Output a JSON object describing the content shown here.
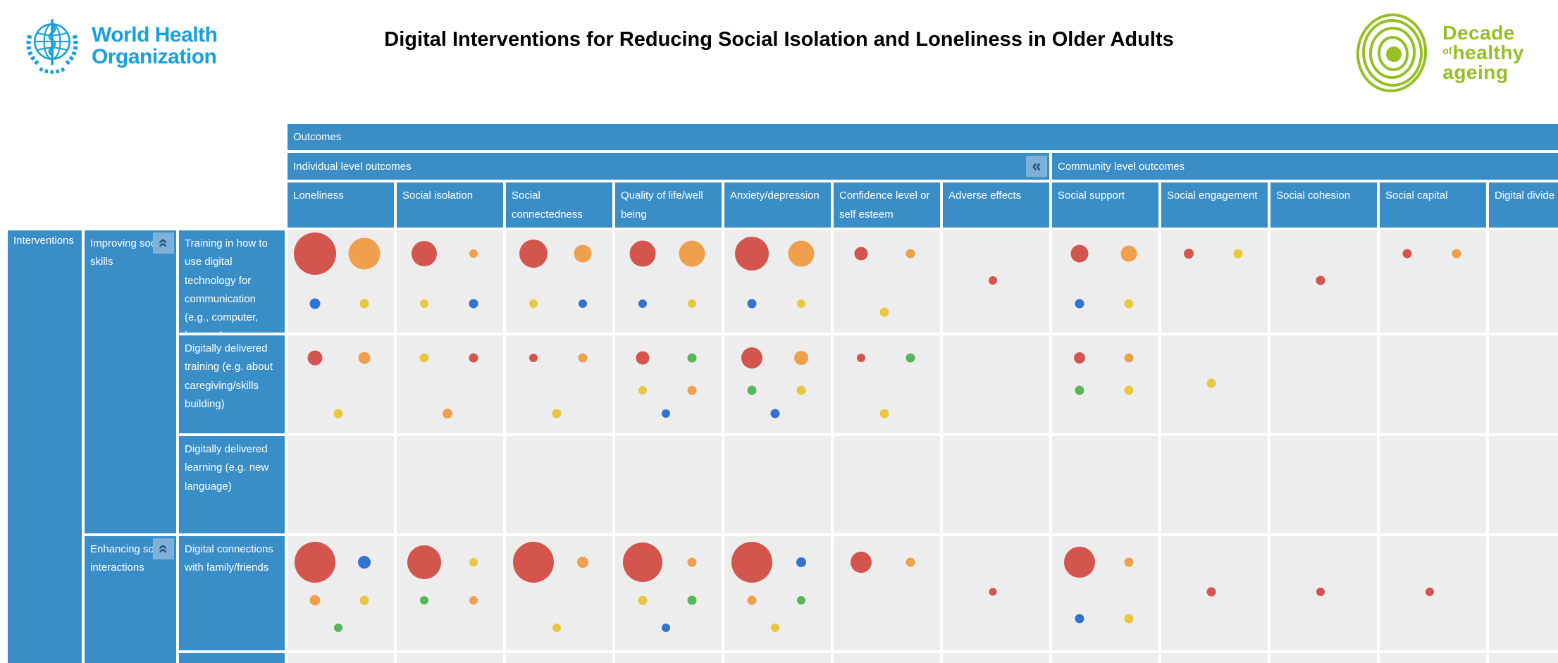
{
  "header": {
    "who_logo": {
      "line1": "World Health",
      "line2": "Organization"
    },
    "title": "Digital Interventions for Reducing Social Isolation and Loneliness in Older Adults",
    "decade_logo": {
      "line1": "Decade",
      "of_small": "of",
      "line2": "healthy",
      "line3": "ageing"
    }
  },
  "icons": {
    "collapse_header": "«",
    "collapse_group": "«"
  },
  "colors": {
    "ui": {
      "header_blue": "#3a8ec8",
      "light_blue": "#7db1d8",
      "chevron_navy": "#1f5480",
      "cell_gray": "#ededed",
      "who_blue": "#19a0db",
      "decade_green": "#95bf23",
      "title_black": "#000000",
      "page_bg": "#ffffff",
      "band_text": "#ffffff"
    },
    "palette": {
      "red": "#d4544e",
      "orange": "#f0a04c",
      "yellow": "#e9c73e",
      "blue": "#2e74d0",
      "green": "#57b65b"
    }
  },
  "chart_data": {
    "type": "heatmap",
    "variant": "bubble evidence gap map (rows = interventions, columns = outcomes, bubbles sized by evidence volume)",
    "title": "Digital Interventions for Reducing Social Isolation and Loneliness in Older Adults",
    "outcomes_label": "Outcomes",
    "interventions_label": "Interventions",
    "column_groups": [
      {
        "id": "individual",
        "label": "Individual level outcomes"
      },
      {
        "id": "community",
        "label": "Community level outcomes"
      }
    ],
    "columns": [
      {
        "id": "loneliness",
        "label": "Loneliness",
        "group": "individual"
      },
      {
        "id": "social_isolation",
        "label": "Social isolation",
        "group": "individual"
      },
      {
        "id": "social_connectedness",
        "label": "Social connectedness",
        "group": "individual"
      },
      {
        "id": "quality_of_life",
        "label": "Quality of life/well being",
        "group": "individual"
      },
      {
        "id": "anxiety_depression",
        "label": "Anxiety/depression",
        "group": "individual"
      },
      {
        "id": "confidence",
        "label": "Confidence level or self esteem",
        "group": "individual"
      },
      {
        "id": "adverse_effects",
        "label": "Adverse effects",
        "group": "individual"
      },
      {
        "id": "social_support",
        "label": "Social support",
        "group": "community"
      },
      {
        "id": "social_engagement",
        "label": "Social engagement",
        "group": "community"
      },
      {
        "id": "social_cohesion",
        "label": "Social cohesion",
        "group": "community"
      },
      {
        "id": "social_capital",
        "label": "Social capital",
        "group": "community"
      },
      {
        "id": "digital_divide",
        "label": "Digital divide",
        "group": "community"
      }
    ],
    "row_groups": [
      {
        "id": "improving_social_skills",
        "label": "Improving social skills",
        "rows": [
          {
            "id": "r1",
            "label": "Training in how to use digital technology for communication (e.g., computer, internet)"
          },
          {
            "id": "r2",
            "label": "Digitally delivered training (e.g. about caregiving/skills building)"
          },
          {
            "id": "r3",
            "label": "Digitally delivered learning (e.g. new language)"
          }
        ]
      },
      {
        "id": "enhancing_social_interactions",
        "label": "Enhancing social interactions",
        "rows": [
          {
            "id": "r4",
            "label": "Digital connections with family/friends"
          },
          {
            "id": "r5",
            "label": ""
          }
        ]
      }
    ],
    "cells": {
      "r1": {
        "loneliness": [
          {
            "color": "red",
            "d": 60,
            "pos": "tl"
          },
          {
            "color": "orange",
            "d": 45,
            "pos": "tr"
          },
          {
            "color": "blue",
            "d": 15,
            "pos": "bl"
          },
          {
            "color": "yellow",
            "d": 13,
            "pos": "br"
          }
        ],
        "social_isolation": [
          {
            "color": "red",
            "d": 36,
            "pos": "tl"
          },
          {
            "color": "orange",
            "d": 12,
            "pos": "tr"
          },
          {
            "color": "yellow",
            "d": 12,
            "pos": "bl"
          },
          {
            "color": "blue",
            "d": 13,
            "pos": "br"
          }
        ],
        "social_connectedness": [
          {
            "color": "red",
            "d": 40,
            "pos": "tl"
          },
          {
            "color": "orange",
            "d": 25,
            "pos": "tr"
          },
          {
            "color": "yellow",
            "d": 12,
            "pos": "bl"
          },
          {
            "color": "blue",
            "d": 12,
            "pos": "br"
          }
        ],
        "quality_of_life": [
          {
            "color": "red",
            "d": 37,
            "pos": "tl"
          },
          {
            "color": "orange",
            "d": 37,
            "pos": "tr"
          },
          {
            "color": "blue",
            "d": 12,
            "pos": "bl"
          },
          {
            "color": "yellow",
            "d": 12,
            "pos": "br"
          }
        ],
        "anxiety_depression": [
          {
            "color": "red",
            "d": 48,
            "pos": "tl"
          },
          {
            "color": "orange",
            "d": 37,
            "pos": "tr"
          },
          {
            "color": "blue",
            "d": 13,
            "pos": "bl"
          },
          {
            "color": "yellow",
            "d": 12,
            "pos": "br"
          }
        ],
        "confidence": [
          {
            "color": "red",
            "d": 19,
            "pos": "tl"
          },
          {
            "color": "orange",
            "d": 13,
            "pos": "tr"
          },
          {
            "color": "yellow",
            "d": 13,
            "pos": "bc"
          }
        ],
        "adverse_effects": [
          {
            "color": "red",
            "d": 12,
            "pos": "c"
          }
        ],
        "social_support": [
          {
            "color": "red",
            "d": 25,
            "pos": "tl"
          },
          {
            "color": "orange",
            "d": 23,
            "pos": "tr"
          },
          {
            "color": "blue",
            "d": 13,
            "pos": "bl"
          },
          {
            "color": "yellow",
            "d": 13,
            "pos": "br"
          }
        ],
        "social_engagement": [
          {
            "color": "red",
            "d": 14,
            "pos": "tl"
          },
          {
            "color": "yellow",
            "d": 13,
            "pos": "tr"
          }
        ],
        "social_cohesion": [
          {
            "color": "red",
            "d": 13,
            "pos": "c"
          }
        ],
        "social_capital": [
          {
            "color": "red",
            "d": 13,
            "pos": "tl"
          },
          {
            "color": "orange",
            "d": 13,
            "pos": "tr"
          }
        ],
        "digital_divide": []
      },
      "r2": {
        "loneliness": [
          {
            "color": "red",
            "d": 21,
            "pos": "tl"
          },
          {
            "color": "orange",
            "d": 17,
            "pos": "tr"
          },
          {
            "color": "yellow",
            "d": 13,
            "pos": "bc"
          }
        ],
        "social_isolation": [
          {
            "color": "yellow",
            "d": 13,
            "pos": "tl"
          },
          {
            "color": "red",
            "d": 13,
            "pos": "tr"
          },
          {
            "color": "orange",
            "d": 14,
            "pos": "bc"
          }
        ],
        "social_connectedness": [
          {
            "color": "red",
            "d": 12,
            "pos": "tl"
          },
          {
            "color": "orange",
            "d": 13,
            "pos": "tr"
          },
          {
            "color": "yellow",
            "d": 13,
            "pos": "bc"
          }
        ],
        "quality_of_life": [
          {
            "color": "red",
            "d": 19,
            "pos": "tl"
          },
          {
            "color": "green",
            "d": 13,
            "pos": "tr"
          },
          {
            "color": "yellow",
            "d": 12,
            "pos": "ml"
          },
          {
            "color": "orange",
            "d": 13,
            "pos": "mr"
          },
          {
            "color": "blue",
            "d": 12,
            "pos": "bc"
          }
        ],
        "anxiety_depression": [
          {
            "color": "red",
            "d": 30,
            "pos": "tl"
          },
          {
            "color": "orange",
            "d": 20,
            "pos": "tr"
          },
          {
            "color": "green",
            "d": 13,
            "pos": "ml"
          },
          {
            "color": "yellow",
            "d": 13,
            "pos": "mr"
          },
          {
            "color": "blue",
            "d": 13,
            "pos": "bc"
          }
        ],
        "confidence": [
          {
            "color": "red",
            "d": 12,
            "pos": "tl"
          },
          {
            "color": "green",
            "d": 13,
            "pos": "tr"
          },
          {
            "color": "yellow",
            "d": 13,
            "pos": "bc"
          }
        ],
        "adverse_effects": [],
        "social_support": [
          {
            "color": "red",
            "d": 16,
            "pos": "tl"
          },
          {
            "color": "orange",
            "d": 13,
            "pos": "tr"
          },
          {
            "color": "green",
            "d": 13,
            "pos": "ml"
          },
          {
            "color": "yellow",
            "d": 13,
            "pos": "mr"
          }
        ],
        "social_engagement": [
          {
            "color": "yellow",
            "d": 13,
            "pos": "c"
          }
        ],
        "social_cohesion": [],
        "social_capital": [],
        "digital_divide": []
      },
      "r3": {},
      "r4": {
        "loneliness": [
          {
            "color": "red",
            "d": 58,
            "pos": "tl"
          },
          {
            "color": "blue",
            "d": 18,
            "pos": "tr"
          },
          {
            "color": "orange",
            "d": 15,
            "pos": "ml"
          },
          {
            "color": "yellow",
            "d": 13,
            "pos": "mr"
          },
          {
            "color": "green",
            "d": 12,
            "pos": "bc"
          }
        ],
        "social_isolation": [
          {
            "color": "red",
            "d": 48,
            "pos": "tl"
          },
          {
            "color": "yellow",
            "d": 12,
            "pos": "tr"
          },
          {
            "color": "green",
            "d": 12,
            "pos": "ml"
          },
          {
            "color": "orange",
            "d": 12,
            "pos": "mr"
          }
        ],
        "social_connectedness": [
          {
            "color": "red",
            "d": 58,
            "pos": "tl"
          },
          {
            "color": "orange",
            "d": 16,
            "pos": "tr"
          },
          {
            "color": "yellow",
            "d": 12,
            "pos": "bc"
          }
        ],
        "quality_of_life": [
          {
            "color": "red",
            "d": 56,
            "pos": "tl"
          },
          {
            "color": "orange",
            "d": 13,
            "pos": "tr"
          },
          {
            "color": "yellow",
            "d": 13,
            "pos": "ml"
          },
          {
            "color": "green",
            "d": 13,
            "pos": "mr"
          },
          {
            "color": "blue",
            "d": 12,
            "pos": "bc"
          }
        ],
        "anxiety_depression": [
          {
            "color": "red",
            "d": 58,
            "pos": "tl"
          },
          {
            "color": "blue",
            "d": 14,
            "pos": "tr"
          },
          {
            "color": "orange",
            "d": 13,
            "pos": "ml"
          },
          {
            "color": "green",
            "d": 12,
            "pos": "mr"
          },
          {
            "color": "yellow",
            "d": 12,
            "pos": "bc"
          }
        ],
        "confidence": [
          {
            "color": "red",
            "d": 30,
            "pos": "tl"
          },
          {
            "color": "orange",
            "d": 13,
            "pos": "tr"
          }
        ],
        "adverse_effects": [
          {
            "color": "red",
            "d": 11,
            "pos": "c"
          }
        ],
        "social_support": [
          {
            "color": "red",
            "d": 44,
            "pos": "tl"
          },
          {
            "color": "orange",
            "d": 13,
            "pos": "tr"
          },
          {
            "color": "blue",
            "d": 13,
            "pos": "bl"
          },
          {
            "color": "yellow",
            "d": 13,
            "pos": "br"
          }
        ],
        "social_engagement": [
          {
            "color": "red",
            "d": 13,
            "pos": "c"
          }
        ],
        "social_cohesion": [
          {
            "color": "red",
            "d": 12,
            "pos": "c"
          }
        ],
        "social_capital": [
          {
            "color": "red",
            "d": 12,
            "pos": "c"
          }
        ],
        "digital_divide": []
      },
      "r5": {}
    }
  }
}
